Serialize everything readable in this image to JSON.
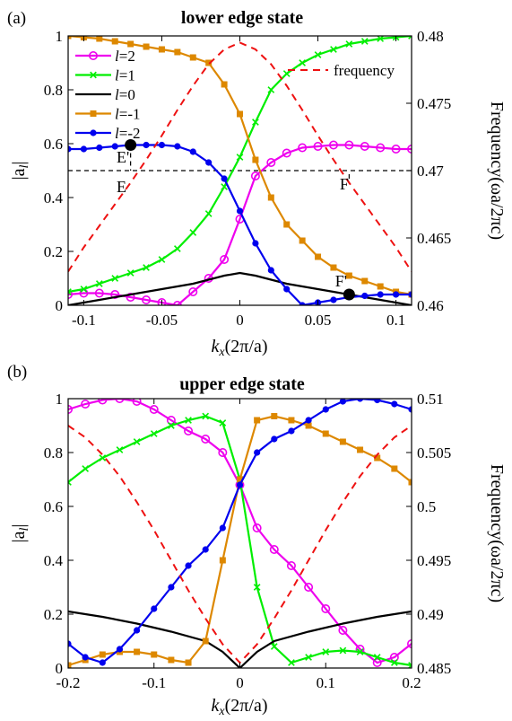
{
  "chart_data": [
    {
      "type": "line",
      "panel_label": "(a)",
      "title": "lower edge state",
      "xlabel_html": [
        "k",
        "x",
        "(2π/a)"
      ],
      "ylabel_left": [
        "|a",
        "l",
        "|"
      ],
      "ylabel_right": "Frequency(ωa/2πc)",
      "xlim": [
        -0.11,
        0.11
      ],
      "ylim_left": [
        0,
        1
      ],
      "ylim_right": [
        0.46,
        0.48
      ],
      "x_ticks": [
        -0.1,
        -0.05,
        0,
        0.05,
        0.1
      ],
      "x_tick_labels": [
        "-0.1",
        "-0.05",
        "0",
        "0.05",
        "0.1"
      ],
      "y_left_ticks": [
        0,
        0.2,
        0.4,
        0.6,
        0.8,
        1
      ],
      "y_left_tick_labels": [
        "0",
        "0.2",
        "0.4",
        "0.6",
        "0.8",
        "1"
      ],
      "y_right_ticks": [
        0.46,
        0.465,
        0.47,
        0.475,
        0.48
      ],
      "y_right_tick_labels": [
        "0.46",
        "0.465",
        "0.47",
        "0.475",
        "0.48"
      ],
      "legend": [
        "l=2",
        "l=1",
        "l=0",
        "l=-1",
        "l=-2",
        "frequency"
      ],
      "series": [
        {
          "name": "l=2",
          "color": "#ee00ee",
          "marker": "circle-open",
          "x": [
            -0.11,
            -0.1,
            -0.09,
            -0.08,
            -0.07,
            -0.06,
            -0.05,
            -0.04,
            -0.03,
            -0.02,
            -0.01,
            0,
            0.01,
            0.02,
            0.03,
            0.04,
            0.05,
            0.06,
            0.07,
            0.08,
            0.09,
            0.1,
            0.11
          ],
          "y": [
            0.04,
            0.045,
            0.045,
            0.04,
            0.03,
            0.02,
            0.01,
            0.0,
            0.05,
            0.1,
            0.17,
            0.32,
            0.48,
            0.53,
            0.565,
            0.585,
            0.59,
            0.595,
            0.595,
            0.59,
            0.585,
            0.58,
            0.58
          ]
        },
        {
          "name": "l=1",
          "color": "#00ee00",
          "marker": "x",
          "x": [
            -0.11,
            -0.1,
            -0.09,
            -0.08,
            -0.07,
            -0.06,
            -0.05,
            -0.04,
            -0.03,
            -0.02,
            -0.01,
            0,
            0.01,
            0.02,
            0.03,
            0.04,
            0.05,
            0.06,
            0.07,
            0.08,
            0.09,
            0.1,
            0.11
          ],
          "y": [
            0.05,
            0.06,
            0.08,
            0.1,
            0.12,
            0.14,
            0.17,
            0.21,
            0.27,
            0.34,
            0.44,
            0.55,
            0.68,
            0.8,
            0.86,
            0.9,
            0.93,
            0.95,
            0.97,
            0.98,
            0.99,
            0.995,
            1.0
          ]
        },
        {
          "name": "l=0",
          "color": "#000000",
          "marker": "none",
          "x": [
            -0.11,
            -0.1,
            -0.09,
            -0.08,
            -0.07,
            -0.06,
            -0.05,
            -0.04,
            -0.03,
            -0.02,
            -0.01,
            0,
            0.01,
            0.02,
            0.03,
            0.04,
            0.05,
            0.06,
            0.07,
            0.08,
            0.09,
            0.1,
            0.11
          ],
          "y": [
            0.0,
            0.01,
            0.02,
            0.03,
            0.04,
            0.05,
            0.06,
            0.07,
            0.08,
            0.095,
            0.11,
            0.12,
            0.11,
            0.095,
            0.08,
            0.07,
            0.06,
            0.05,
            0.04,
            0.03,
            0.02,
            0.01,
            0.0
          ]
        },
        {
          "name": "l=-1",
          "color": "#dd8800",
          "marker": "square",
          "x": [
            -0.11,
            -0.1,
            -0.09,
            -0.08,
            -0.07,
            -0.06,
            -0.05,
            -0.04,
            -0.03,
            -0.02,
            -0.01,
            0,
            0.01,
            0.02,
            0.03,
            0.04,
            0.05,
            0.06,
            0.07,
            0.08,
            0.09,
            0.1,
            0.11
          ],
          "y": [
            1.0,
            0.995,
            0.99,
            0.98,
            0.97,
            0.96,
            0.95,
            0.94,
            0.92,
            0.9,
            0.82,
            0.71,
            0.54,
            0.4,
            0.3,
            0.24,
            0.18,
            0.14,
            0.11,
            0.09,
            0.07,
            0.05,
            0.04
          ]
        },
        {
          "name": "l=-2",
          "color": "#0000ee",
          "marker": "circle-filled",
          "x": [
            -0.11,
            -0.1,
            -0.09,
            -0.08,
            -0.07,
            -0.06,
            -0.05,
            -0.04,
            -0.03,
            -0.02,
            -0.01,
            0,
            0.01,
            0.02,
            0.03,
            0.04,
            0.05,
            0.06,
            0.07,
            0.08,
            0.09,
            0.1,
            0.11
          ],
          "y": [
            0.58,
            0.58,
            0.585,
            0.59,
            0.595,
            0.595,
            0.595,
            0.59,
            0.57,
            0.53,
            0.47,
            0.35,
            0.23,
            0.13,
            0.06,
            0.0,
            0.01,
            0.02,
            0.03,
            0.035,
            0.04,
            0.04,
            0.04
          ]
        },
        {
          "name": "frequency",
          "color": "#ee1111",
          "marker": "none",
          "dashed": true,
          "axis": "right",
          "x": [
            -0.11,
            -0.1,
            -0.09,
            -0.08,
            -0.07,
            -0.06,
            -0.05,
            -0.04,
            -0.03,
            -0.02,
            -0.01,
            0,
            0.01,
            0.02,
            0.03,
            0.04,
            0.05,
            0.06,
            0.07,
            0.08,
            0.09,
            0.1,
            0.11
          ],
          "y": [
            0.4625,
            0.4643,
            0.4659,
            0.4675,
            0.4691,
            0.4708,
            0.4726,
            0.4745,
            0.4763,
            0.4779,
            0.479,
            0.4795,
            0.479,
            0.4779,
            0.4763,
            0.4745,
            0.4726,
            0.4708,
            0.4691,
            0.4675,
            0.4659,
            0.4643,
            0.4625
          ]
        }
      ],
      "guides": [
        {
          "kind": "hline",
          "y": 0.47,
          "axis": "right"
        },
        {
          "kind": "vline",
          "x": -0.07,
          "y0": 0.47,
          "y1": 0.595
        },
        {
          "kind": "vline",
          "x": 0.07,
          "y0": 0.04,
          "y1": 0.47
        }
      ],
      "points": [
        {
          "x": -0.07,
          "y": 0.595,
          "label": "E'",
          "lx": -0.079,
          "ly": 0.53
        },
        {
          "x": 0.07,
          "y": 0.04,
          "label": "F'",
          "lx": 0.061,
          "ly": 0.07
        }
      ],
      "annotations": [
        {
          "label": "E",
          "x": -0.079,
          "y": 0.42
        },
        {
          "label": "F",
          "x": 0.064,
          "y": 0.43
        }
      ]
    },
    {
      "type": "line",
      "panel_label": "(b)",
      "title": "upper edge state",
      "xlabel_html": [
        "k",
        "x",
        "(2π/a)"
      ],
      "ylabel_left": [
        "|a",
        "l",
        "|"
      ],
      "ylabel_right": "Frequency(ωa/2πc)",
      "xlim": [
        -0.2,
        0.2
      ],
      "ylim_left": [
        0,
        1
      ],
      "ylim_right": [
        0.485,
        0.51
      ],
      "x_ticks": [
        -0.2,
        -0.1,
        0,
        0.1,
        0.2
      ],
      "x_tick_labels": [
        "-0.2",
        "-0.1",
        "0",
        "0.1",
        "0.2"
      ],
      "y_left_ticks": [
        0,
        0.2,
        0.4,
        0.6,
        0.8,
        1
      ],
      "y_left_tick_labels": [
        "0",
        "0.2",
        "0.4",
        "0.6",
        "0.8",
        "1"
      ],
      "y_right_ticks": [
        0.485,
        0.49,
        0.495,
        0.5,
        0.505,
        0.51
      ],
      "y_right_tick_labels": [
        "0.485",
        "0.49",
        "0.495",
        "0.5",
        "0.505",
        "0.51"
      ],
      "series": [
        {
          "name": "l=2",
          "color": "#ee00ee",
          "marker": "circle-open",
          "x": [
            -0.2,
            -0.18,
            -0.16,
            -0.14,
            -0.12,
            -0.1,
            -0.08,
            -0.06,
            -0.04,
            -0.02,
            0,
            0.02,
            0.04,
            0.06,
            0.08,
            0.1,
            0.12,
            0.14,
            0.16,
            0.18,
            0.2
          ],
          "y": [
            0.96,
            0.98,
            0.995,
            1.0,
            0.99,
            0.96,
            0.92,
            0.88,
            0.85,
            0.8,
            0.68,
            0.52,
            0.44,
            0.38,
            0.3,
            0.22,
            0.14,
            0.07,
            0.02,
            0.04,
            0.09
          ]
        },
        {
          "name": "l=1",
          "color": "#00ee00",
          "marker": "x",
          "x": [
            -0.2,
            -0.18,
            -0.16,
            -0.14,
            -0.12,
            -0.1,
            -0.08,
            -0.06,
            -0.04,
            -0.02,
            0,
            0.02,
            0.04,
            0.06,
            0.08,
            0.1,
            0.12,
            0.14,
            0.16,
            0.18,
            0.2
          ],
          "y": [
            0.69,
            0.74,
            0.78,
            0.81,
            0.84,
            0.87,
            0.9,
            0.92,
            0.935,
            0.91,
            0.7,
            0.3,
            0.08,
            0.02,
            0.04,
            0.06,
            0.065,
            0.06,
            0.04,
            0.02,
            0.01
          ]
        },
        {
          "name": "l=0",
          "color": "#000000",
          "marker": "none",
          "x": [
            -0.2,
            -0.16,
            -0.12,
            -0.08,
            -0.04,
            -0.02,
            0,
            0.02,
            0.04,
            0.08,
            0.12,
            0.16,
            0.2
          ],
          "y": [
            0.21,
            0.19,
            0.165,
            0.135,
            0.1,
            0.06,
            0.0,
            0.06,
            0.1,
            0.135,
            0.165,
            0.19,
            0.21
          ]
        },
        {
          "name": "l=-1",
          "color": "#dd8800",
          "marker": "square",
          "x": [
            -0.2,
            -0.18,
            -0.16,
            -0.14,
            -0.12,
            -0.1,
            -0.08,
            -0.06,
            -0.04,
            -0.02,
            0,
            0.02,
            0.04,
            0.06,
            0.08,
            0.1,
            0.12,
            0.14,
            0.16,
            0.18,
            0.2
          ],
          "y": [
            0.01,
            0.03,
            0.05,
            0.06,
            0.06,
            0.05,
            0.03,
            0.02,
            0.1,
            0.4,
            0.7,
            0.92,
            0.935,
            0.92,
            0.9,
            0.87,
            0.84,
            0.81,
            0.78,
            0.74,
            0.69
          ]
        },
        {
          "name": "l=-2",
          "color": "#0000ee",
          "marker": "circle-filled",
          "x": [
            -0.2,
            -0.18,
            -0.16,
            -0.14,
            -0.12,
            -0.1,
            -0.08,
            -0.06,
            -0.04,
            -0.02,
            0,
            0.02,
            0.04,
            0.06,
            0.08,
            0.1,
            0.12,
            0.14,
            0.16,
            0.18,
            0.2
          ],
          "y": [
            0.09,
            0.04,
            0.02,
            0.07,
            0.14,
            0.22,
            0.3,
            0.38,
            0.44,
            0.52,
            0.68,
            0.8,
            0.85,
            0.88,
            0.92,
            0.96,
            0.99,
            1.0,
            0.995,
            0.98,
            0.96
          ]
        },
        {
          "name": "frequency",
          "color": "#ee1111",
          "marker": "none",
          "dashed": true,
          "axis": "right",
          "x": [
            -0.2,
            -0.18,
            -0.16,
            -0.14,
            -0.12,
            -0.1,
            -0.08,
            -0.06,
            -0.04,
            -0.02,
            0,
            0.02,
            0.04,
            0.06,
            0.08,
            0.1,
            0.12,
            0.14,
            0.16,
            0.18,
            0.2
          ],
          "y": [
            0.5075,
            0.5064,
            0.5048,
            0.5028,
            0.5004,
            0.4978,
            0.495,
            0.4922,
            0.4896,
            0.4872,
            0.4855,
            0.4872,
            0.4896,
            0.4922,
            0.495,
            0.4978,
            0.5004,
            0.5028,
            0.5048,
            0.5064,
            0.5075
          ]
        }
      ]
    }
  ]
}
